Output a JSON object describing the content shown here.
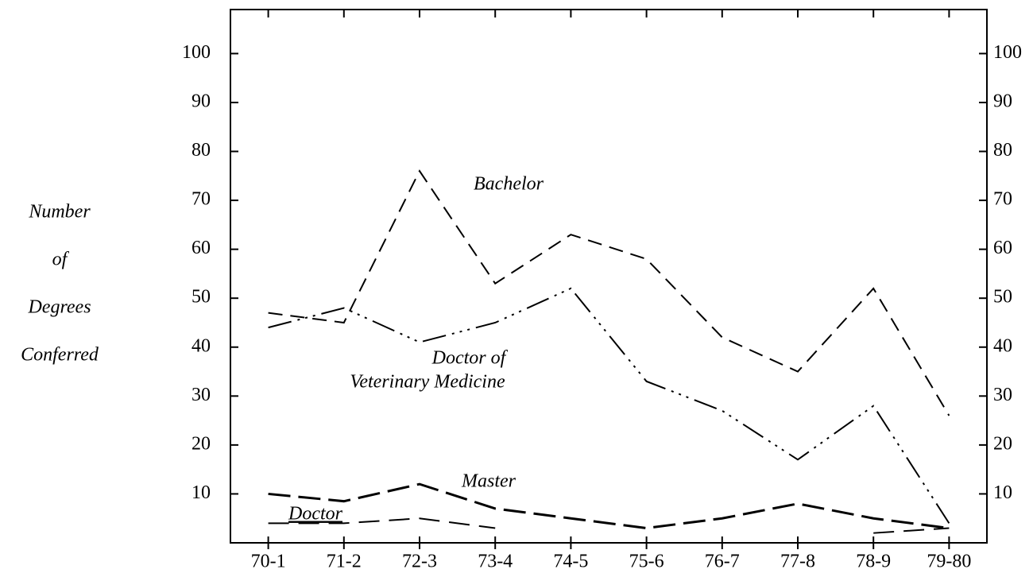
{
  "chart_data": {
    "type": "line",
    "ylabel": [
      "Number",
      "of",
      "Degrees",
      "Conferred"
    ],
    "categories": [
      "70-1",
      "71-2",
      "72-3",
      "73-4",
      "74-5",
      "75-6",
      "76-7",
      "77-8",
      "78-9",
      "79-80"
    ],
    "series": [
      {
        "name": "Bachelor",
        "color": "#000000",
        "values": [
          47,
          45,
          76,
          53,
          63,
          58,
          42,
          35,
          52,
          26
        ]
      },
      {
        "name": "Doctor of Veterinary Medicine",
        "color": "#000000",
        "values": [
          44,
          48,
          41,
          45,
          52,
          33,
          27,
          17,
          28,
          4
        ]
      },
      {
        "name": "Master",
        "color": "#000000",
        "values": [
          10,
          8.5,
          12,
          7,
          5,
          3,
          5,
          8,
          5,
          3
        ]
      },
      {
        "name": "Doctor",
        "color": "#000000",
        "values": [
          4,
          4,
          5,
          3,
          null,
          null,
          null,
          null,
          2,
          3
        ]
      }
    ],
    "annotations": [
      "Bachelor",
      "Doctor of",
      "Veterinary Medicine",
      "Master",
      "Doctor"
    ],
    "ylim": [
      0,
      109
    ],
    "yticks": [
      10,
      20,
      30,
      40,
      50,
      60,
      70,
      80,
      90,
      100
    ],
    "y2lim": [
      0,
      109
    ],
    "y2ticks": [
      10,
      20,
      30,
      40,
      50,
      60,
      70,
      80,
      90,
      100
    ],
    "grid": false
  }
}
